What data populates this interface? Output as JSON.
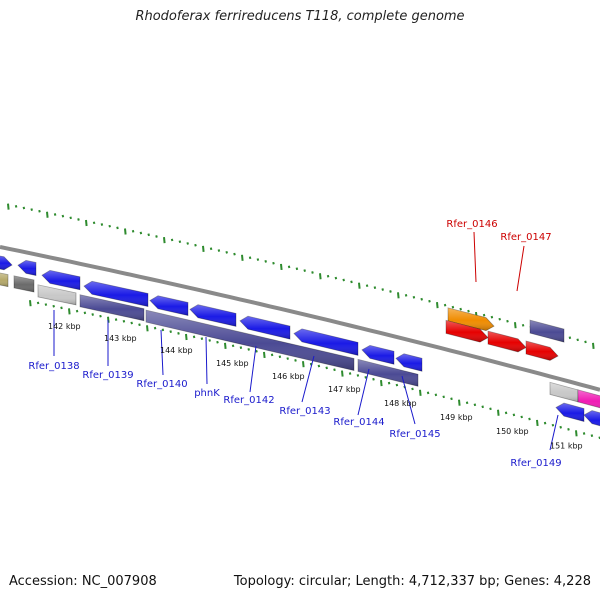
{
  "header": {
    "title": "Rhodoferax ferrireducens T118, complete genome"
  },
  "footer": {
    "accession": "Accession: NC_007908",
    "summary": "Topology: circular; Length: 4,712,337 bp; Genes: 4,228"
  },
  "colors": {
    "backbone": "#8a8a8a",
    "ticks": "#2e8b2e",
    "cds_blue": "#1a1ae6",
    "cds_red": "#e60000",
    "cds_orange": "#f08c00",
    "cds_slate": "#4b4a94",
    "cds_gray": "#c8c8c8",
    "cds_dark_gray": "#6a6a6a",
    "cds_pink": "#f01ab4",
    "cds_khaki": "#b5a96a",
    "label_blue": "#1a1acc",
    "label_red": "#cc0000"
  },
  "axis": {
    "kbp_labels": [
      "142 kbp",
      "143 kbp",
      "144 kbp",
      "145 kbp",
      "146 kbp",
      "147 kbp",
      "148 kbp",
      "149 kbp",
      "150 kbp",
      "151 kbp"
    ]
  },
  "genes": [
    {
      "label": "Rfer_0138",
      "color": "label_blue"
    },
    {
      "label": "Rfer_0139",
      "color": "label_blue"
    },
    {
      "label": "Rfer_0140",
      "color": "label_blue"
    },
    {
      "label": "phnK",
      "color": "label_blue"
    },
    {
      "label": "Rfer_0142",
      "color": "label_blue"
    },
    {
      "label": "Rfer_0143",
      "color": "label_blue"
    },
    {
      "label": "Rfer_0144",
      "color": "label_blue"
    },
    {
      "label": "Rfer_0145",
      "color": "label_blue"
    },
    {
      "label": "Rfer_0146",
      "color": "label_red"
    },
    {
      "label": "Rfer_0147",
      "color": "label_red"
    },
    {
      "label": "Rfer_0149",
      "color": "label_blue"
    }
  ]
}
